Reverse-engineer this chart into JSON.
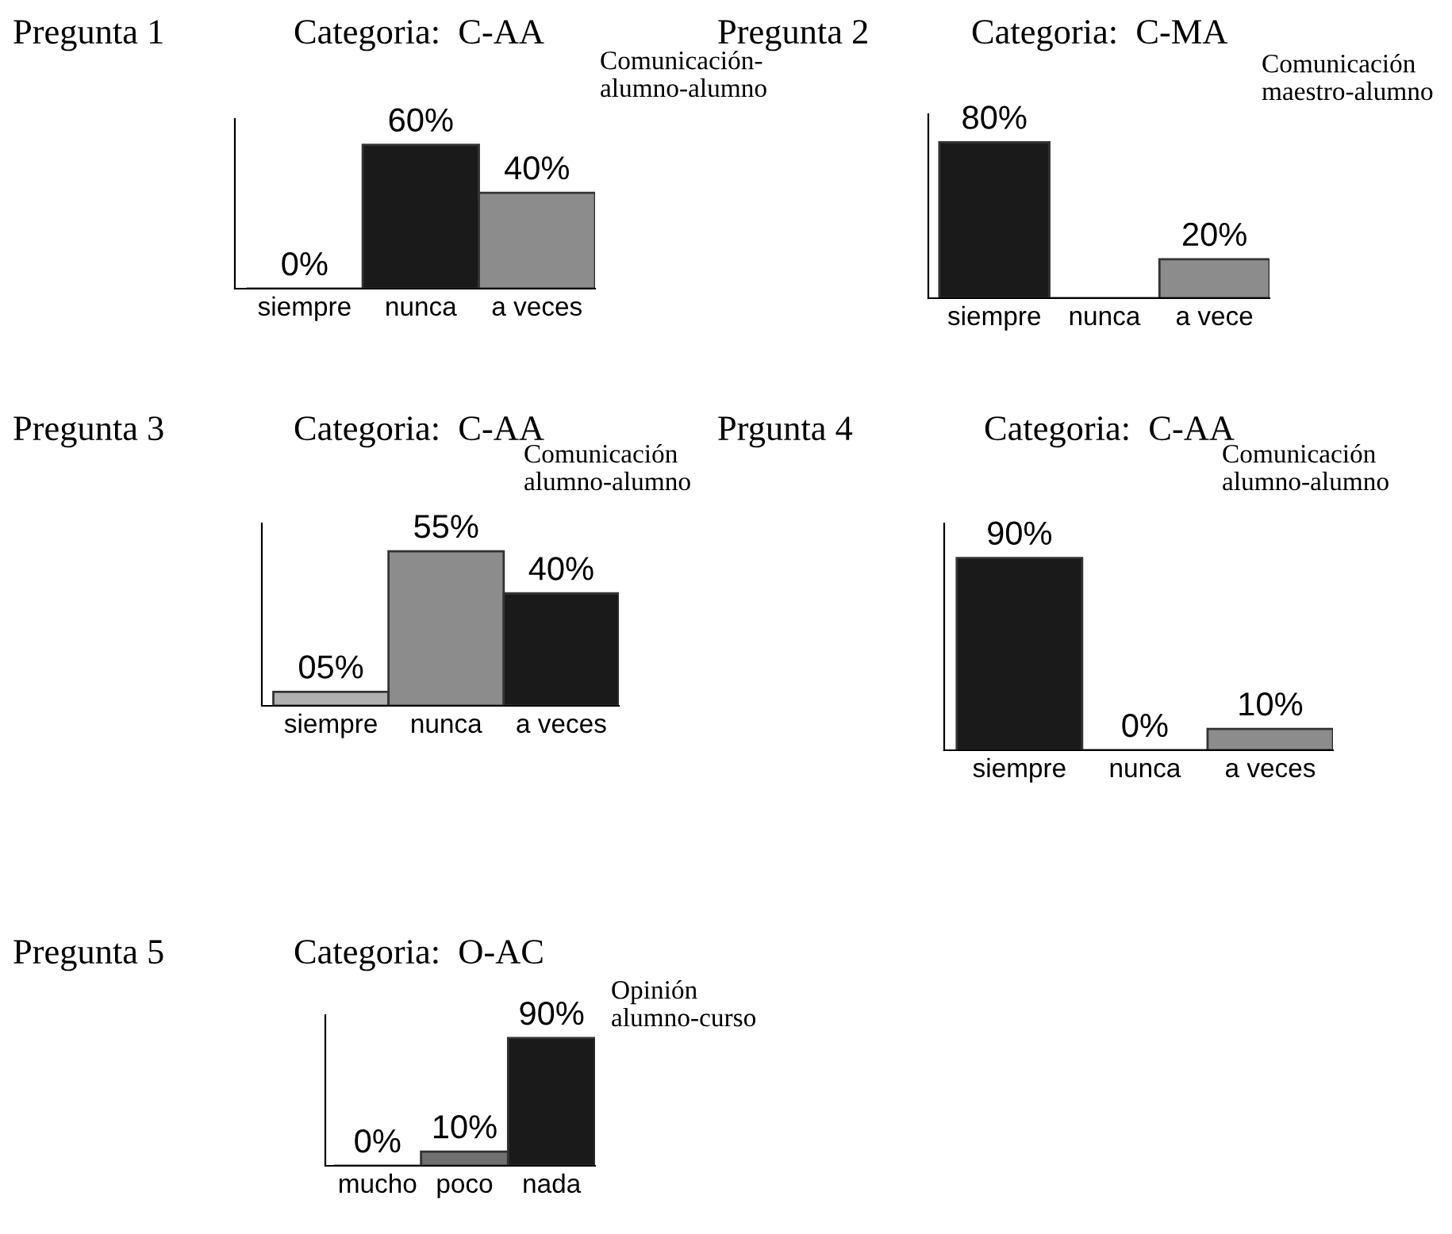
{
  "chart_data": [
    {
      "type": "bar",
      "title": "Pregunta 1",
      "subtitle": "Categoria:  C-AA",
      "annotations": [
        "Comunicación-\nalumno-alumno"
      ],
      "categories": [
        "siempre",
        "nunca",
        "a veces"
      ],
      "values": [
        0,
        60,
        40
      ],
      "colors": [
        "#1a1a1a",
        "#1a1a1a",
        "#8c8c8c"
      ],
      "value_labels": [
        "0%",
        "60%",
        "40%"
      ],
      "tick_labels": "x"
    },
    {
      "type": "bar",
      "title": "Pregunta 2",
      "subtitle": "Categoria:  C-MA",
      "annotations": [
        "Comunicación\nmaestro-alumno"
      ],
      "categories": [
        "siempre",
        "nunca",
        "a vece"
      ],
      "values": [
        80,
        0,
        20
      ],
      "colors": [
        "#1a1a1a",
        "#1a1a1a",
        "#8c8c8c"
      ],
      "value_labels": [
        "80%",
        null,
        "20%"
      ],
      "tick_labels": "x"
    },
    {
      "type": "bar",
      "title": "Pregunta 3",
      "subtitle": "Categoria:  C-AA",
      "annotations": [
        "Comunicación\nalumno-alumno"
      ],
      "categories": [
        "siempre",
        "nunca",
        "a veces"
      ],
      "values": [
        5,
        55,
        40
      ],
      "colors": [
        "#b0b0b0",
        "#8c8c8c",
        "#1a1a1a"
      ],
      "value_labels": [
        "05%",
        "55%",
        "40%"
      ],
      "tick_labels": "x"
    },
    {
      "type": "bar",
      "title": "Prgunta 4",
      "subtitle": "Categoria:  C-AA",
      "annotations": [
        "Comunicación\nalumno-alumno"
      ],
      "categories": [
        "siempre",
        "nunca",
        "a veces"
      ],
      "values": [
        90,
        0,
        10
      ],
      "colors": [
        "#1a1a1a",
        "#1a1a1a",
        "#8c8c8c"
      ],
      "value_labels": [
        "90%",
        "0%",
        "10%"
      ],
      "tick_labels": "x"
    },
    {
      "type": "bar",
      "title": "Pregunta 5",
      "subtitle": "Categoria:  O-AC",
      "annotations": [
        "Opinión\nalumno-curso"
      ],
      "categories": [
        "mucho",
        "poco",
        "nada"
      ],
      "values": [
        0,
        10,
        90
      ],
      "colors": [
        "#1a1a1a",
        "#707070",
        "#1a1a1a"
      ],
      "value_labels": [
        "0%",
        "10%",
        "90%"
      ],
      "tick_labels": "x"
    }
  ]
}
